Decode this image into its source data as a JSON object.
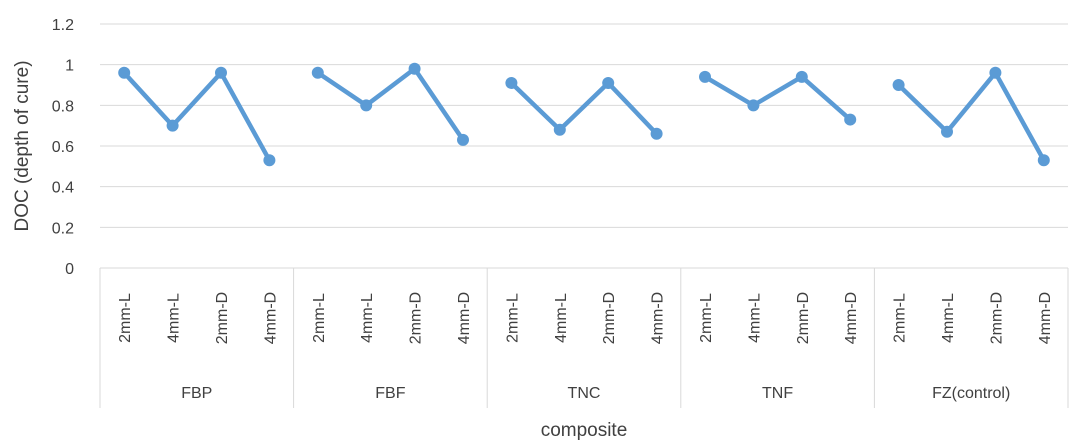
{
  "chart_data": {
    "type": "line",
    "xlabel": "composite",
    "ylabel": "DOC (depth of cure)",
    "ylim": [
      0,
      1.2
    ],
    "yticks": [
      "0",
      "0.2",
      "0.4",
      "0.6",
      "0.8",
      "1",
      "1.2"
    ],
    "grid": true,
    "legend": "none",
    "series_color": "#5b9bd5",
    "gridline_color": "#d9d9d9",
    "groups": [
      {
        "name": "FBP",
        "categories": [
          "2mm-L",
          "4mm-L",
          "2mm-D",
          "4mm-D"
        ],
        "values": [
          0.96,
          0.7,
          0.96,
          0.53
        ]
      },
      {
        "name": "FBF",
        "categories": [
          "2mm-L",
          "4mm-L",
          "2mm-D",
          "4mm-D"
        ],
        "values": [
          0.96,
          0.8,
          0.98,
          0.63
        ]
      },
      {
        "name": "TNC",
        "categories": [
          "2mm-L",
          "4mm-L",
          "2mm-D",
          "4mm-D"
        ],
        "values": [
          0.91,
          0.68,
          0.91,
          0.66
        ]
      },
      {
        "name": "TNF",
        "categories": [
          "2mm-L",
          "4mm-L",
          "2mm-D",
          "4mm-D"
        ],
        "values": [
          0.94,
          0.8,
          0.94,
          0.73
        ]
      },
      {
        "name": "FZ(control)",
        "categories": [
          "2mm-L",
          "4mm-L",
          "2mm-D",
          "4mm-D"
        ],
        "values": [
          0.9,
          0.67,
          0.96,
          0.53
        ]
      }
    ]
  }
}
